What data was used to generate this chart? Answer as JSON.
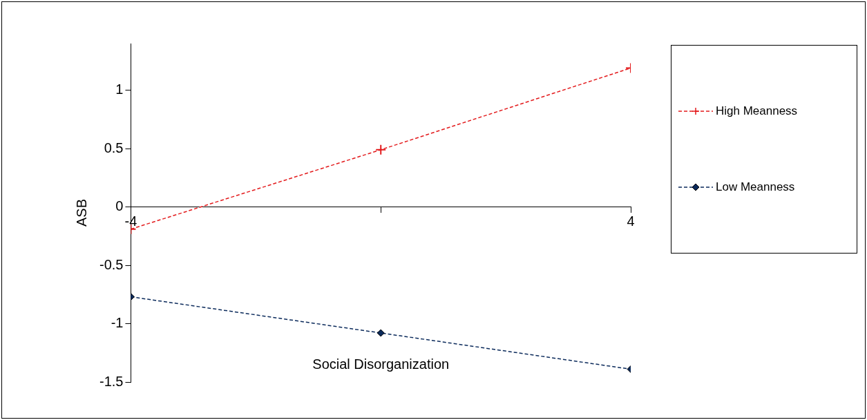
{
  "chart_data": {
    "type": "line",
    "xlabel": "Social Disorganization",
    "ylabel": "ASB",
    "x": [
      -4,
      0,
      4
    ],
    "series": [
      {
        "name": "High Meanness",
        "color": "#e31a1c",
        "values": [
          -0.19,
          0.49,
          1.19
        ],
        "marker": "cross"
      },
      {
        "name": "Low Meanness",
        "color": "#0b2a5b",
        "values": [
          -0.77,
          -1.08,
          -1.39
        ],
        "marker": "diamond"
      }
    ],
    "xlim": [
      -4,
      4
    ],
    "xticks": [
      -4,
      {
        "value": 0,
        "label": null
      },
      4
    ],
    "ylim": [
      -1.5,
      1.4
    ],
    "yticks": [
      -1.5,
      -1,
      -0.5,
      0,
      0.5,
      1
    ],
    "grid": false,
    "legend": "right",
    "line_style": "dashed"
  }
}
